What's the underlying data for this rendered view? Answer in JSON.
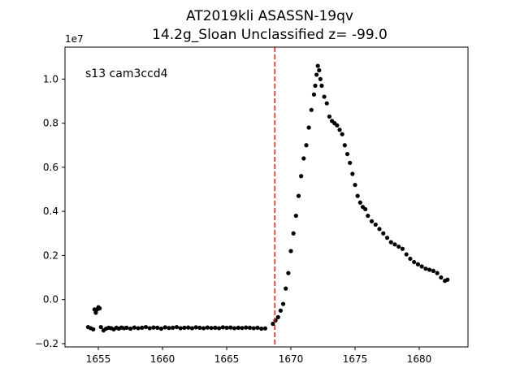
{
  "chart_data": {
    "type": "scatter",
    "title_line1": "AT2019kli  ASASSN-19qv",
    "title_line2": "14.2g_Sloan Unclassified z= -99.0",
    "xlabel": "",
    "ylabel": "",
    "y_offset_label": "1e7",
    "annotation": "s13 cam3ccd4",
    "xlim": [
      1652.4,
      1683.8
    ],
    "ylim": [
      -0.215,
      1.145
    ],
    "y_scale": 10000000,
    "xticks": [
      1655,
      1660,
      1665,
      1670,
      1675,
      1680
    ],
    "yticks": [
      -0.2,
      0.0,
      0.2,
      0.4,
      0.6,
      0.8,
      1.0
    ],
    "ytick_labels": [
      "−0.2",
      "0.0",
      "0.2",
      "0.4",
      "0.6",
      "0.8",
      "1.0"
    ],
    "vline": {
      "x": 1668.75,
      "color": "#e41a1c",
      "style": "dashed"
    },
    "marker_color": "#000000",
    "series": [
      {
        "x": [
          1654.2,
          1654.4,
          1654.6,
          1654.7,
          1654.8,
          1654.9,
          1655.0,
          1655.1,
          1655.2,
          1655.4,
          1655.6,
          1655.8,
          1656.0,
          1656.2,
          1656.4,
          1656.6,
          1656.8,
          1657.0,
          1657.2,
          1657.5,
          1657.8,
          1658.1,
          1658.4,
          1658.7,
          1659.0,
          1659.3,
          1659.6,
          1659.9,
          1660.2,
          1660.5,
          1660.8,
          1661.1,
          1661.4,
          1661.7,
          1662.0,
          1662.3,
          1662.6,
          1662.9,
          1663.2,
          1663.5,
          1663.8,
          1664.1,
          1664.4,
          1664.7,
          1665.0,
          1665.3,
          1665.6,
          1665.9,
          1666.2,
          1666.5,
          1666.8,
          1667.1,
          1667.4,
          1667.7,
          1668.0,
          1668.6,
          1668.8,
          1669.0,
          1669.2,
          1669.4,
          1669.6,
          1669.8,
          1670.0,
          1670.2,
          1670.4,
          1670.6,
          1670.8,
          1671.0,
          1671.2,
          1671.4,
          1671.6,
          1671.8,
          1671.9,
          1672.0,
          1672.1,
          1672.2,
          1672.3,
          1672.4,
          1672.6,
          1672.8,
          1673.0,
          1673.2,
          1673.4,
          1673.6,
          1673.8,
          1674.0,
          1674.2,
          1674.4,
          1674.6,
          1674.8,
          1675.0,
          1675.2,
          1675.4,
          1675.6,
          1675.8,
          1676.0,
          1676.3,
          1676.6,
          1676.9,
          1677.2,
          1677.5,
          1677.8,
          1678.1,
          1678.4,
          1678.7,
          1679.0,
          1679.3,
          1679.6,
          1679.9,
          1680.2,
          1680.5,
          1680.8,
          1681.1,
          1681.4,
          1681.7,
          1682.0,
          1682.2
        ],
        "y": [
          -0.125,
          -0.13,
          -0.135,
          -0.045,
          -0.06,
          -0.045,
          -0.035,
          -0.04,
          -0.125,
          -0.14,
          -0.132,
          -0.128,
          -0.13,
          -0.135,
          -0.128,
          -0.132,
          -0.127,
          -0.13,
          -0.128,
          -0.132,
          -0.127,
          -0.13,
          -0.128,
          -0.125,
          -0.13,
          -0.127,
          -0.128,
          -0.132,
          -0.126,
          -0.129,
          -0.128,
          -0.125,
          -0.13,
          -0.128,
          -0.127,
          -0.13,
          -0.126,
          -0.128,
          -0.13,
          -0.127,
          -0.129,
          -0.128,
          -0.13,
          -0.126,
          -0.128,
          -0.127,
          -0.13,
          -0.128,
          -0.129,
          -0.127,
          -0.128,
          -0.13,
          -0.128,
          -0.132,
          -0.131,
          -0.11,
          -0.095,
          -0.08,
          -0.05,
          -0.02,
          0.05,
          0.12,
          0.22,
          0.3,
          0.38,
          0.47,
          0.56,
          0.64,
          0.7,
          0.78,
          0.86,
          0.93,
          0.97,
          1.02,
          1.06,
          1.04,
          1.0,
          0.97,
          0.92,
          0.89,
          0.83,
          0.81,
          0.8,
          0.79,
          0.77,
          0.75,
          0.7,
          0.66,
          0.62,
          0.57,
          0.52,
          0.47,
          0.44,
          0.42,
          0.41,
          0.38,
          0.355,
          0.34,
          0.32,
          0.3,
          0.28,
          0.26,
          0.25,
          0.24,
          0.23,
          0.205,
          0.185,
          0.17,
          0.16,
          0.15,
          0.14,
          0.135,
          0.13,
          0.12,
          0.1,
          0.085,
          0.09
        ]
      }
    ]
  }
}
